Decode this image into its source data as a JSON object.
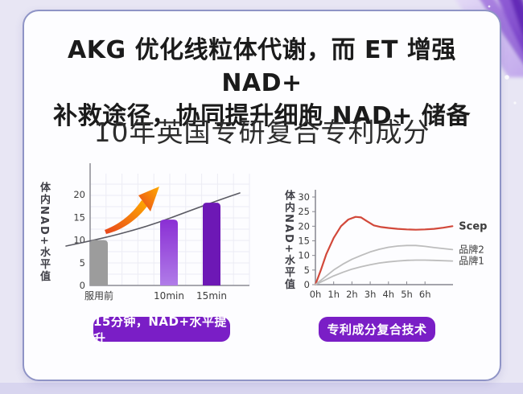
{
  "page": {
    "headline_line1": "AKG 优化线粒体代谢，而 ET 增强 NAD+",
    "headline_line2": "补救途径，协同提升细胞 NAD+ 储备",
    "subtitle": "10年英国专研复合专利成分"
  },
  "badges": {
    "left_label": "15分钟，NAD+水平提升",
    "right_label": "专利成分复合技术"
  },
  "colors": {
    "accent_purple": "#7a1ec6",
    "deep_bar_purple": "#6d18b5",
    "bar_gradient_top": "#8a2fd4",
    "bar_gradient_bottom": "#b07ce8",
    "gray_bar": "#9c9c9c",
    "scep_red": "#d2483a",
    "competitor_gray": "#bdbdbd",
    "arrow_orange_start": "#e8451d",
    "arrow_orange_end": "#ffab00",
    "card_border": "#8f94c6",
    "page_bg": "#e8e6f4"
  },
  "chart_data": [
    {
      "type": "bar",
      "title": "",
      "ylabel": "体内NAD+水平值",
      "categories": [
        "服用前",
        "10min",
        "15min"
      ],
      "values": [
        10,
        14.5,
        18.2
      ],
      "yticks": [
        0,
        5,
        10,
        15,
        20
      ],
      "ylim": [
        0,
        26
      ],
      "grid": true,
      "bar_colors": [
        "gray",
        "purple-gradient",
        "purple"
      ],
      "annotations": [
        "orange-rise-arrow",
        "upward-trend-curve"
      ]
    },
    {
      "type": "line",
      "title": "",
      "ylabel": "体内NAD+水平值",
      "x_tick_labels": [
        "0h",
        "1h",
        "2h",
        "3h",
        "4h",
        "5h",
        "6h"
      ],
      "x_tick_hours": [
        0,
        1,
        2,
        3,
        4,
        5,
        6
      ],
      "yticks": [
        0,
        5,
        10,
        15,
        20,
        25,
        30
      ],
      "ylim": [
        0,
        32
      ],
      "xlim_hours": [
        0,
        7.5
      ],
      "grid": false,
      "legend_position": "right-of-line-ends",
      "series": [
        {
          "name": "Scep",
          "color": "#d2483a",
          "label_color": "#d2483a",
          "width": 2.2,
          "x": [
            0,
            0.3,
            0.6,
            1,
            1.4,
            1.8,
            2.2,
            2.5,
            2.8,
            3.2,
            3.6,
            4,
            4.5,
            5,
            5.5,
            6,
            6.5,
            7,
            7.5
          ],
          "y": [
            0,
            5,
            10.5,
            16,
            20,
            22.3,
            23.2,
            23,
            21.8,
            20.3,
            19.7,
            19.4,
            19.1,
            18.9,
            18.8,
            18.9,
            19.1,
            19.5,
            20
          ]
        },
        {
          "name": "品牌2",
          "color": "#bdbdbd",
          "label_color": "#4a4a4a",
          "width": 1.8,
          "x": [
            0,
            0.5,
            1,
            1.5,
            2,
            2.5,
            3,
            3.5,
            4,
            4.5,
            5,
            5.5,
            6,
            6.5,
            7.5
          ],
          "y": [
            0,
            2.5,
            5,
            7,
            8.7,
            10,
            11.2,
            12.1,
            12.8,
            13.2,
            13.4,
            13.4,
            13.1,
            12.7,
            12
          ]
        },
        {
          "name": "品牌1",
          "color": "#bdbdbd",
          "label_color": "#4a4a4a",
          "width": 1.8,
          "x": [
            0,
            0.5,
            1,
            1.5,
            2,
            2.5,
            3,
            3.5,
            4,
            4.5,
            5,
            5.5,
            6,
            6.5,
            7.5
          ],
          "y": [
            0,
            1.5,
            3,
            4.2,
            5.3,
            6.1,
            6.8,
            7.4,
            7.8,
            8.1,
            8.3,
            8.4,
            8.4,
            8.3,
            8.1
          ]
        }
      ]
    }
  ]
}
